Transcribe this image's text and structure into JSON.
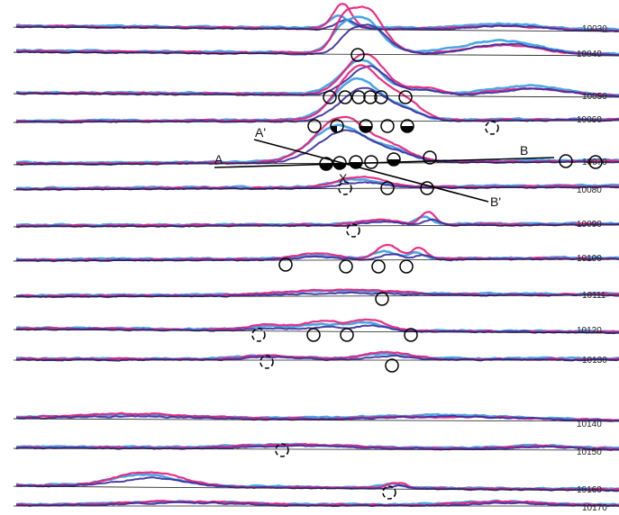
{
  "colors": {
    "magenta": "#e8207a",
    "light_blue": "#3a9ee4",
    "dark_blue": "#3b2f9c",
    "baseline": "#1b1b1b",
    "marker": "#000000",
    "background": "#ffffff"
  },
  "line_labels": [
    "10030",
    "10040",
    "10050",
    "10060",
    "10070",
    "10080",
    "10090",
    "10100",
    "10111",
    "10120",
    "10130",
    "10140",
    "10150",
    "10160",
    "10170"
  ],
  "section_labels": {
    "a": "A",
    "b": "B",
    "a_prime": "A'",
    "b_prime": "B'",
    "x": "X"
  },
  "markers": [
    {
      "line": "10040",
      "type": "open"
    },
    {
      "line": "10050",
      "type": "open"
    },
    {
      "line": "10050",
      "type": "open"
    },
    {
      "line": "10050",
      "type": "open"
    },
    {
      "line": "10050",
      "type": "open"
    },
    {
      "line": "10050",
      "type": "open"
    },
    {
      "line": "10050",
      "type": "open"
    },
    {
      "line": "10060",
      "type": "open"
    },
    {
      "line": "10060",
      "type": "quarter"
    },
    {
      "line": "10060",
      "type": "half"
    },
    {
      "line": "10060",
      "type": "open"
    },
    {
      "line": "10060",
      "type": "half"
    },
    {
      "line": "10060",
      "type": "dashed"
    },
    {
      "line": "10070",
      "type": "half"
    },
    {
      "line": "10070",
      "type": "half"
    },
    {
      "line": "10070",
      "type": "half"
    },
    {
      "line": "10070",
      "type": "filled"
    },
    {
      "line": "10070",
      "type": "half"
    },
    {
      "line": "10070",
      "type": "open"
    },
    {
      "line": "10070",
      "type": "open"
    },
    {
      "line": "10070",
      "type": "open"
    },
    {
      "line": "10080",
      "type": "dashed"
    },
    {
      "line": "10080",
      "type": "open"
    },
    {
      "line": "10080",
      "type": "open"
    },
    {
      "line": "10090",
      "type": "dashed"
    },
    {
      "line": "10100",
      "type": "open"
    },
    {
      "line": "10100",
      "type": "open"
    },
    {
      "line": "10100",
      "type": "open"
    },
    {
      "line": "10100",
      "type": "open"
    },
    {
      "line": "10111",
      "type": "open"
    },
    {
      "line": "10120",
      "type": "dashed"
    },
    {
      "line": "10120",
      "type": "open"
    },
    {
      "line": "10120",
      "type": "open"
    },
    {
      "line": "10120",
      "type": "open"
    },
    {
      "line": "10130",
      "type": "dashed"
    },
    {
      "line": "10130",
      "type": "open"
    },
    {
      "line": "10150",
      "type": "dashed"
    },
    {
      "line": "10160",
      "type": "dashed"
    }
  ]
}
